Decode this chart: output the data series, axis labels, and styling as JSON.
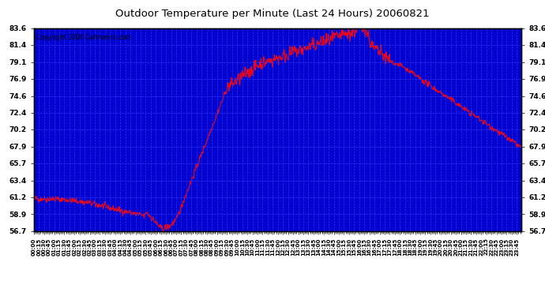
{
  "title": "Outdoor Temperature per Minute (Last 24 Hours) 20060821",
  "copyright": "Copyright 2006 Cartronics.com",
  "plot_bg_color": "#0000cc",
  "line_color": "#ff0000",
  "fig_bg_color": "#ffffff",
  "grid_color": "#3333ff",
  "yticks": [
    56.7,
    58.9,
    61.2,
    63.4,
    65.7,
    67.9,
    70.2,
    72.4,
    74.6,
    76.9,
    79.1,
    81.4,
    83.6
  ],
  "ymin": 56.7,
  "ymax": 83.6
}
